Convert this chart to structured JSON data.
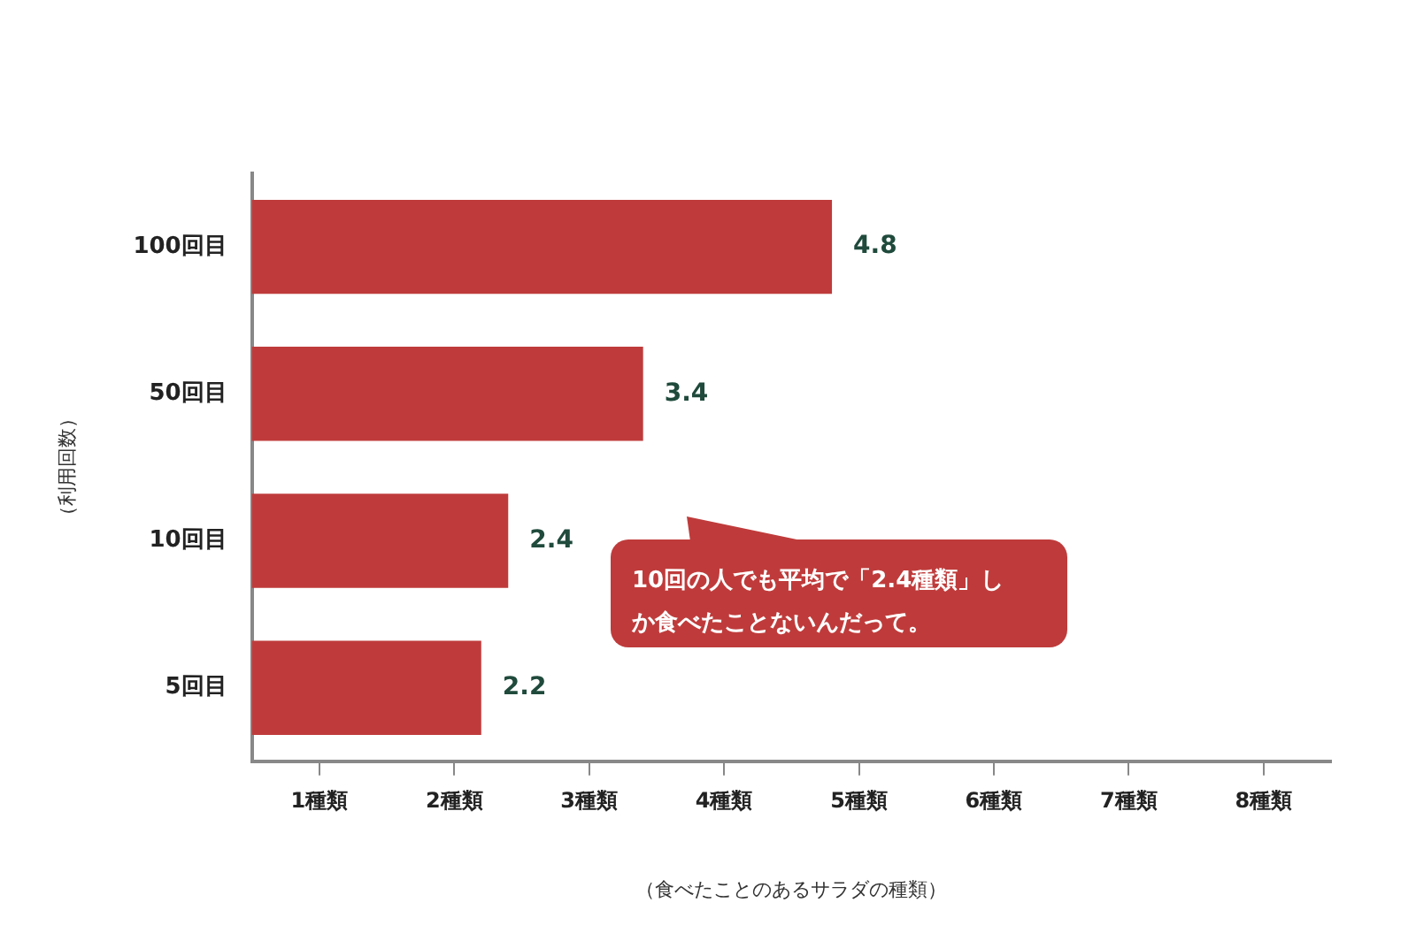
{
  "chart_data": {
    "type": "bar",
    "orientation": "horizontal",
    "categories": [
      "100回目",
      "50回目",
      "10回目",
      "5回目"
    ],
    "values": [
      4.8,
      3.4,
      2.4,
      2.2
    ],
    "color": "#bf3b3b",
    "xlim": [
      0.5,
      8.5
    ],
    "xticks": [
      {
        "value": 1,
        "label": "1種類"
      },
      {
        "value": 2,
        "label": "2種類"
      },
      {
        "value": 3,
        "label": "3種類"
      },
      {
        "value": 4,
        "label": "4種類"
      },
      {
        "value": 5,
        "label": "5種類"
      },
      {
        "value": 6,
        "label": "6種類"
      },
      {
        "value": 7,
        "label": "7種類"
      },
      {
        "value": 8,
        "label": "8種類"
      }
    ],
    "xlabel": "（食べたことのあるサラダの種類）",
    "ylabel": "（利用回数）",
    "data_labels": true,
    "grid": false,
    "legend": false,
    "annotations": [
      "10回の人でも平均で「2.4種類」しか食べたことないんだって。"
    ]
  }
}
